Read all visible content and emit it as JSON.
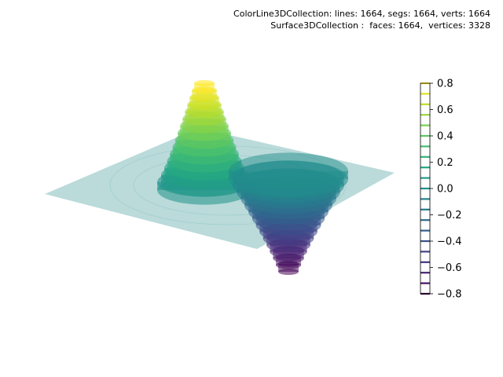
{
  "header": {
    "line1": "ColorLine3DCollection: lines: 1664, segs: 1664, verts: 1664",
    "line2": "Surface3DCollection :  faces: 1664,  vertices: 3328"
  },
  "chart_data": {
    "type": "surface3d",
    "colormap": "viridis",
    "plane_color": "#2a8c8c",
    "grid": false,
    "axes_visible": false,
    "peak": {
      "z_max": 0.8
    },
    "trough": {
      "z_min": -0.8
    },
    "colorbar": {
      "placement": "right",
      "vmin": -0.8,
      "vmax": 0.8,
      "ticks": [
        0.8,
        0.6,
        0.4,
        0.2,
        0.0,
        -0.2,
        -0.4,
        -0.6,
        -0.8
      ],
      "tick_labels": [
        "0.8",
        "0.6",
        "0.4",
        "0.2",
        "0.0",
        "−0.2",
        "−0.4",
        "−0.6",
        "−0.8"
      ],
      "level_count": 20
    }
  }
}
